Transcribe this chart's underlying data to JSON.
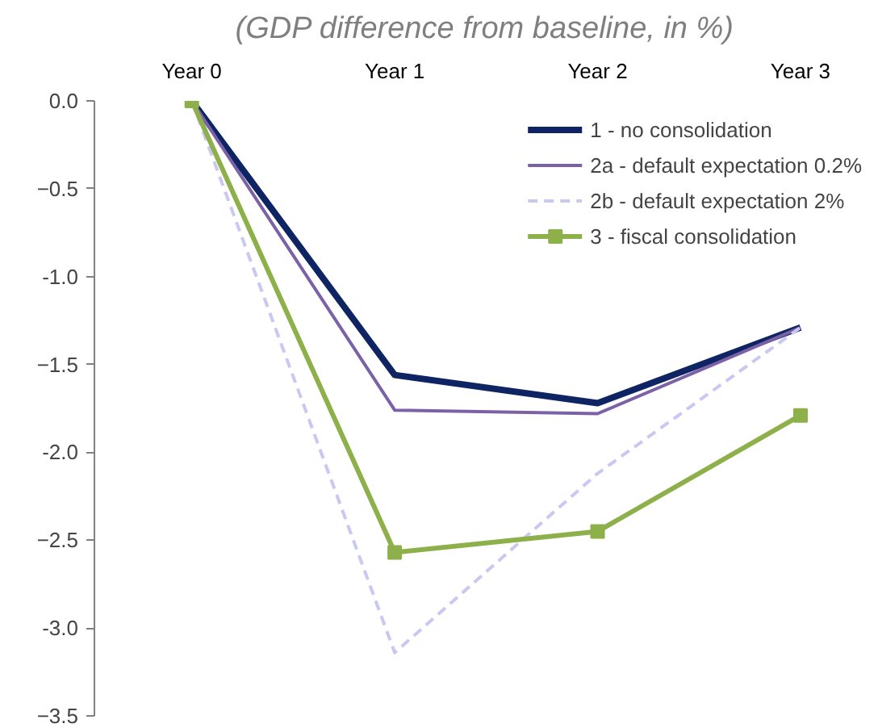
{
  "chart_data": {
    "type": "line",
    "title": "(GDP difference from baseline, in %)",
    "categories": [
      "Year 0",
      "Year 1",
      "Year 2",
      "Year 3"
    ],
    "series": [
      {
        "name": "1 - no consolidation",
        "color": "#0f2563",
        "values": [
          0,
          -1.56,
          -1.72,
          -1.29
        ],
        "line_style": "solid",
        "marker": "none"
      },
      {
        "name": "2a - default expectation 0.2%",
        "color": "#7b62a6",
        "values": [
          0,
          -1.76,
          -1.78,
          -1.29
        ],
        "line_style": "solid",
        "marker": "none"
      },
      {
        "name": "2b - default expectation 2%",
        "color": "#c8c8f2",
        "values": [
          0,
          -3.14,
          -2.12,
          -1.29
        ],
        "line_style": "dashed",
        "marker": "none"
      },
      {
        "name": "3 - fiscal consolidation",
        "color": "#8db04a",
        "values": [
          0,
          -2.57,
          -2.45,
          -1.79
        ],
        "line_style": "solid",
        "marker": "square"
      }
    ],
    "ylim": [
      -3.5,
      0.0
    ],
    "yticks": [
      {
        "value": 0,
        "label": "0.0"
      },
      -0.5,
      {
        "value": -1,
        "label": "-1.0"
      },
      -1.5,
      {
        "value": -2,
        "label": "-2.0"
      },
      -2.5,
      {
        "value": -3,
        "label": "-3.0"
      },
      -3.5
    ],
    "grid": false,
    "legend": "top right"
  }
}
